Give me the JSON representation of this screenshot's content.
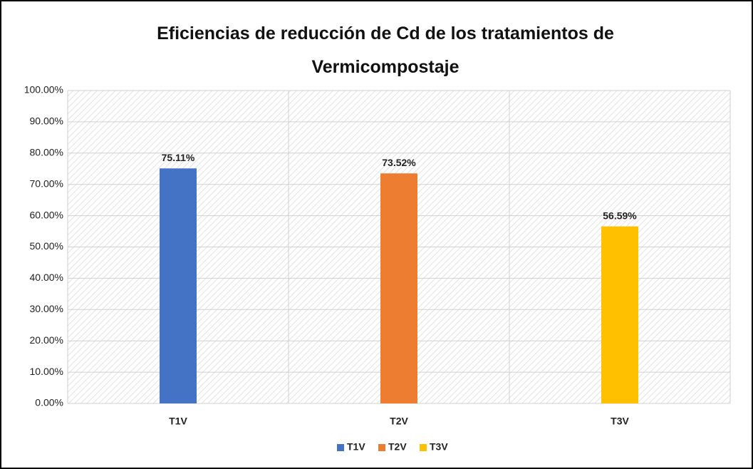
{
  "chart_data": {
    "type": "bar",
    "title": "Eficiencias de reducción de Cd de los tratamientos de Vermicompostaje",
    "categories": [
      "T1V",
      "T2V",
      "T3V"
    ],
    "values": [
      75.11,
      73.52,
      56.59
    ],
    "value_labels": [
      "75.11%",
      "73.52%",
      "56.59%"
    ],
    "colors": [
      "#4472c4",
      "#ed7d31",
      "#ffc000"
    ],
    "ylim": [
      0,
      100
    ],
    "yticks": [
      {
        "value": 0,
        "label": "0.00%"
      },
      {
        "value": 10,
        "label": "10.00%"
      },
      {
        "value": 20,
        "label": "20.00%"
      },
      {
        "value": 30,
        "label": "30.00%"
      },
      {
        "value": 40,
        "label": "40.00%"
      },
      {
        "value": 50,
        "label": "50.00%"
      },
      {
        "value": 60,
        "label": "60.00%"
      },
      {
        "value": 70,
        "label": "70.00%"
      },
      {
        "value": 80,
        "label": "80.00%"
      },
      {
        "value": 90,
        "label": "90.00%"
      },
      {
        "value": 100,
        "label": "100.00%"
      }
    ],
    "grid": true,
    "legend": "bottom"
  }
}
